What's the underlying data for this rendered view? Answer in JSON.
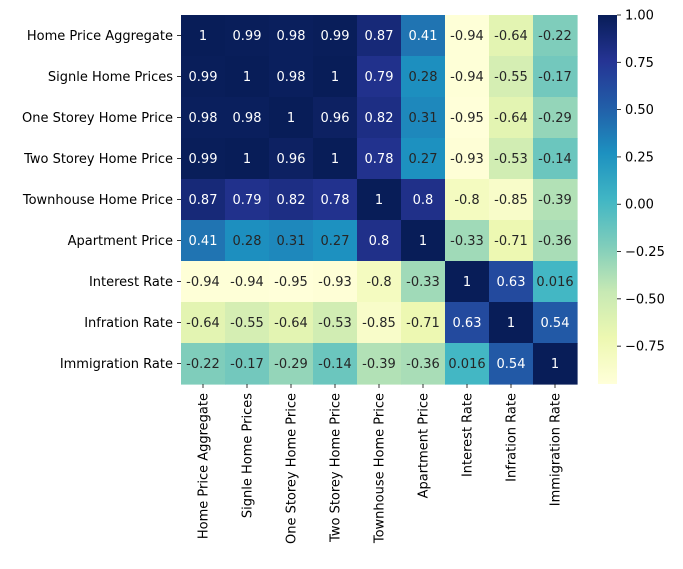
{
  "chart_data": {
    "type": "heatmap",
    "title": "",
    "xlabel": "",
    "ylabel": "",
    "rows": [
      "Home Price Aggregate",
      "Signle Home Prices",
      "One Storey Home Price",
      "Two Storey Home Price",
      "Townhouse Home Price",
      "Apartment Price",
      "Interest Rate",
      "Infration Rate",
      "Immigration Rate"
    ],
    "columns": [
      "Home Price Aggregate",
      "Signle Home Prices",
      "One Storey Home Price",
      "Two Storey Home Price",
      "Townhouse Home Price",
      "Apartment Price",
      "Interest Rate",
      "Infration Rate",
      "Immigration Rate"
    ],
    "values": [
      [
        1,
        0.99,
        0.98,
        0.99,
        0.87,
        0.41,
        -0.94,
        -0.64,
        -0.22
      ],
      [
        0.99,
        1,
        0.98,
        1,
        0.79,
        0.28,
        -0.94,
        -0.55,
        -0.17
      ],
      [
        0.98,
        0.98,
        1,
        0.96,
        0.82,
        0.31,
        -0.95,
        -0.64,
        -0.29
      ],
      [
        0.99,
        1,
        0.96,
        1,
        0.78,
        0.27,
        -0.93,
        -0.53,
        -0.14
      ],
      [
        0.87,
        0.79,
        0.82,
        0.78,
        1,
        0.8,
        -0.8,
        -0.85,
        -0.39
      ],
      [
        0.41,
        0.28,
        0.31,
        0.27,
        0.8,
        1,
        -0.33,
        -0.71,
        -0.36
      ],
      [
        -0.94,
        -0.94,
        -0.95,
        -0.93,
        -0.8,
        -0.33,
        1,
        0.63,
        0.016
      ],
      [
        -0.64,
        -0.55,
        -0.64,
        -0.53,
        -0.85,
        -0.71,
        0.63,
        1,
        0.54
      ],
      [
        -0.22,
        -0.17,
        -0.29,
        -0.14,
        -0.39,
        -0.36,
        0.016,
        0.54,
        1
      ]
    ],
    "annotations": [
      [
        "1",
        "0.99",
        "0.98",
        "0.99",
        "0.87",
        "0.41",
        "-0.94",
        "-0.64",
        "-0.22"
      ],
      [
        "0.99",
        "1",
        "0.98",
        "1",
        "0.79",
        "0.28",
        "-0.94",
        "-0.55",
        "-0.17"
      ],
      [
        "0.98",
        "0.98",
        "1",
        "0.96",
        "0.82",
        "0.31",
        "-0.95",
        "-0.64",
        "-0.29"
      ],
      [
        "0.99",
        "1",
        "0.96",
        "1",
        "0.78",
        "0.27",
        "-0.93",
        "-0.53",
        "-0.14"
      ],
      [
        "0.87",
        "0.79",
        "0.82",
        "0.78",
        "1",
        "0.8",
        "-0.8",
        "-0.85",
        "-0.39"
      ],
      [
        "0.41",
        "0.28",
        "0.31",
        "0.27",
        "0.8",
        "1",
        "-0.33",
        "-0.71",
        "-0.36"
      ],
      [
        "-0.94",
        "-0.94",
        "-0.95",
        "-0.93",
        "-0.8",
        "-0.33",
        "1",
        "0.63",
        "0.016"
      ],
      [
        "-0.64",
        "-0.55",
        "-0.64",
        "-0.53",
        "-0.85",
        "-0.71",
        "0.63",
        "1",
        "0.54"
      ],
      [
        "-0.22",
        "-0.17",
        "-0.29",
        "-0.14",
        "-0.39",
        "-0.36",
        "0.016",
        "0.54",
        "1"
      ]
    ],
    "colormap": "YlGnBu",
    "color_range": [
      -0.95,
      1
    ],
    "colorbar": {
      "ticks": [
        1.0,
        0.75,
        0.5,
        0.25,
        0.0,
        -0.25,
        -0.5,
        -0.75
      ],
      "tick_labels": [
        "1.00",
        "0.75",
        "0.50",
        "0.25",
        "0.00",
        "−0.25",
        "−0.50",
        "−0.75"
      ],
      "placement": "right"
    },
    "grid": false,
    "colors": {
      "low": "#ffffd9",
      "high": "#081d58",
      "text_light": "#ffffff",
      "text_dark": "#262626"
    }
  }
}
